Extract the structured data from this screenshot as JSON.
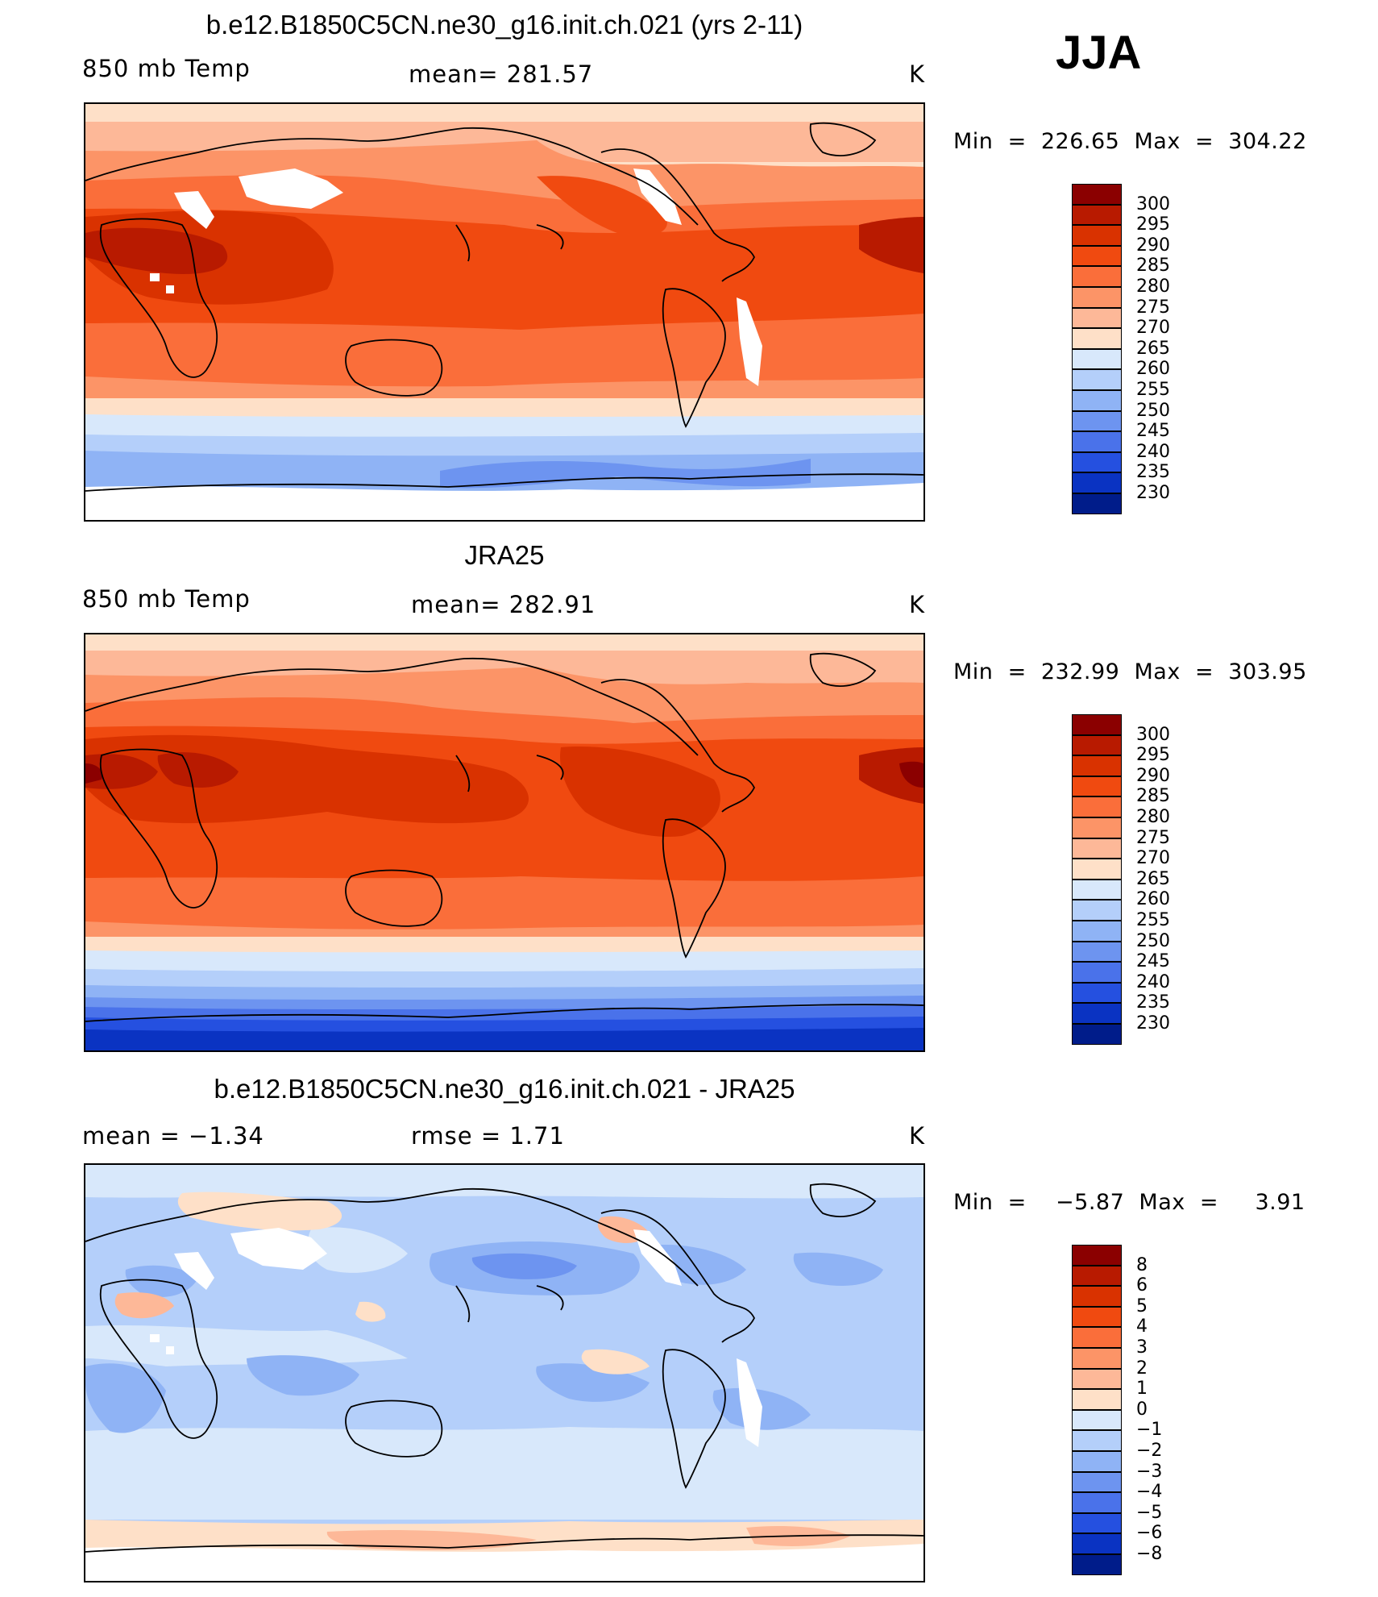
{
  "season": "JJA",
  "panels": [
    {
      "title": "b.e12.B1850C5CN.ne30_g16.init.ch.021 (yrs 2-11)",
      "left_label": "850 mb Temp",
      "center_label": "mean=  281.57",
      "units": "K",
      "min_max": "Min  =  226.65  Max  =  304.22",
      "field": "model"
    },
    {
      "title": "JRA25",
      "left_label": "850 mb Temp",
      "center_label": "mean=  282.91",
      "units": "K",
      "min_max": "Min  =  232.99  Max  =  303.95",
      "field": "obs"
    },
    {
      "title": "b.e12.B1850C5CN.ne30_g16.init.ch.021 - JRA25",
      "left_label": "mean  =    −1.34",
      "center_label": "rmse  =     1.71",
      "units": "K",
      "min_max": "Min  =    −5.87  Max  =     3.91",
      "field": "diff"
    }
  ],
  "colorbars": {
    "temperature": {
      "labels": [
        "300",
        "295",
        "290",
        "285",
        "280",
        "275",
        "270",
        "265",
        "260",
        "255",
        "250",
        "245",
        "240",
        "235",
        "230"
      ],
      "colors": [
        "#8b0000",
        "#b81a00",
        "#d93200",
        "#f04a10",
        "#fa6e3a",
        "#fc9467",
        "#fdb898",
        "#fee0c8",
        "#d8e8fb",
        "#b4cffa",
        "#8fb3f5",
        "#6d94f0",
        "#4a72ea",
        "#2550e0",
        "#0a33c2",
        "#001c8a"
      ]
    },
    "difference": {
      "labels": [
        "8",
        "6",
        "5",
        "4",
        "3",
        "2",
        "1",
        "0",
        "−1",
        "−2",
        "−3",
        "−4",
        "−5",
        "−6",
        "−8"
      ],
      "colors": [
        "#8b0000",
        "#b81a00",
        "#d93200",
        "#f04a10",
        "#fa6e3a",
        "#fc9467",
        "#fdb898",
        "#fee0c8",
        "#d8e8fb",
        "#b4cffa",
        "#8fb3f5",
        "#6d94f0",
        "#4a72ea",
        "#2550e0",
        "#0a33c2",
        "#001c8a"
      ]
    }
  }
}
